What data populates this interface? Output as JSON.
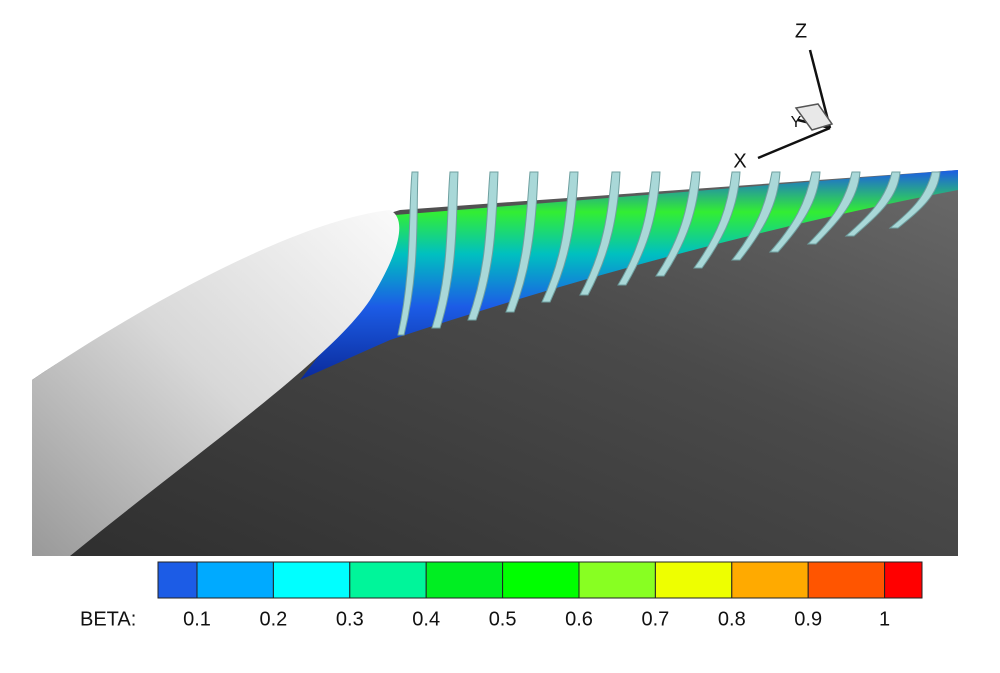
{
  "axes": {
    "z": "Z",
    "y": "Y",
    "x": "X"
  },
  "legend": {
    "title": "BETA:",
    "labels": [
      0.1,
      0.2,
      0.3,
      0.4,
      0.5,
      0.6,
      0.7,
      0.8,
      0.9,
      1
    ],
    "colors": [
      "#1c5ce6",
      "#00aaff",
      "#00ffff",
      "#00f59a",
      "#00ee22",
      "#00ff00",
      "#88ff22",
      "#eeff00",
      "#ffaa00",
      "#ff5500",
      "#ff0000"
    ]
  }
}
